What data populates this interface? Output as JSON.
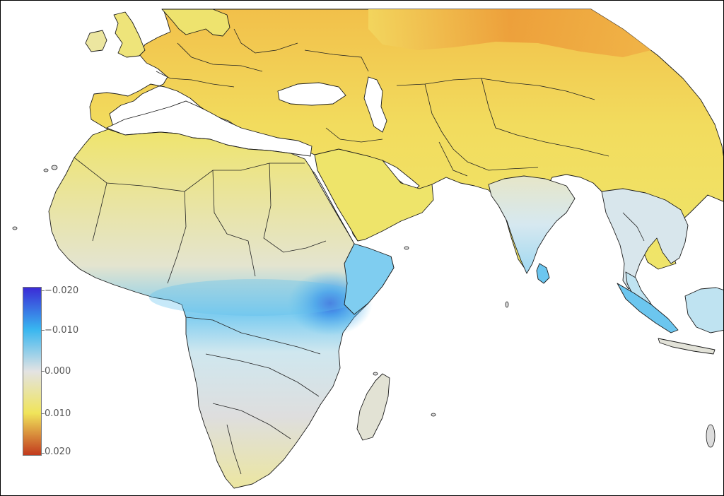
{
  "colorbar": {
    "labels": [
      "−0.020",
      "−0.010",
      "0.000",
      "0.010",
      "0.020"
    ],
    "values": [
      -0.02,
      -0.01,
      0.0,
      0.01,
      0.02
    ],
    "colors": [
      "#3b2bd6",
      "#38b6f0",
      "#e3e3e3",
      "#f0e45a",
      "#c23a1e"
    ]
  },
  "palette": {
    "yellow": "#efe56a",
    "pale_yellow": "#eeea8c",
    "grey": "#dcdcdc",
    "light_blue": "#bfe4f3",
    "blue": "#5ec1ee",
    "deep_blue": "#3a62e0",
    "orange": "#f0a43a",
    "deep_orange": "#e9822c",
    "ocean": "#ffffff"
  }
}
